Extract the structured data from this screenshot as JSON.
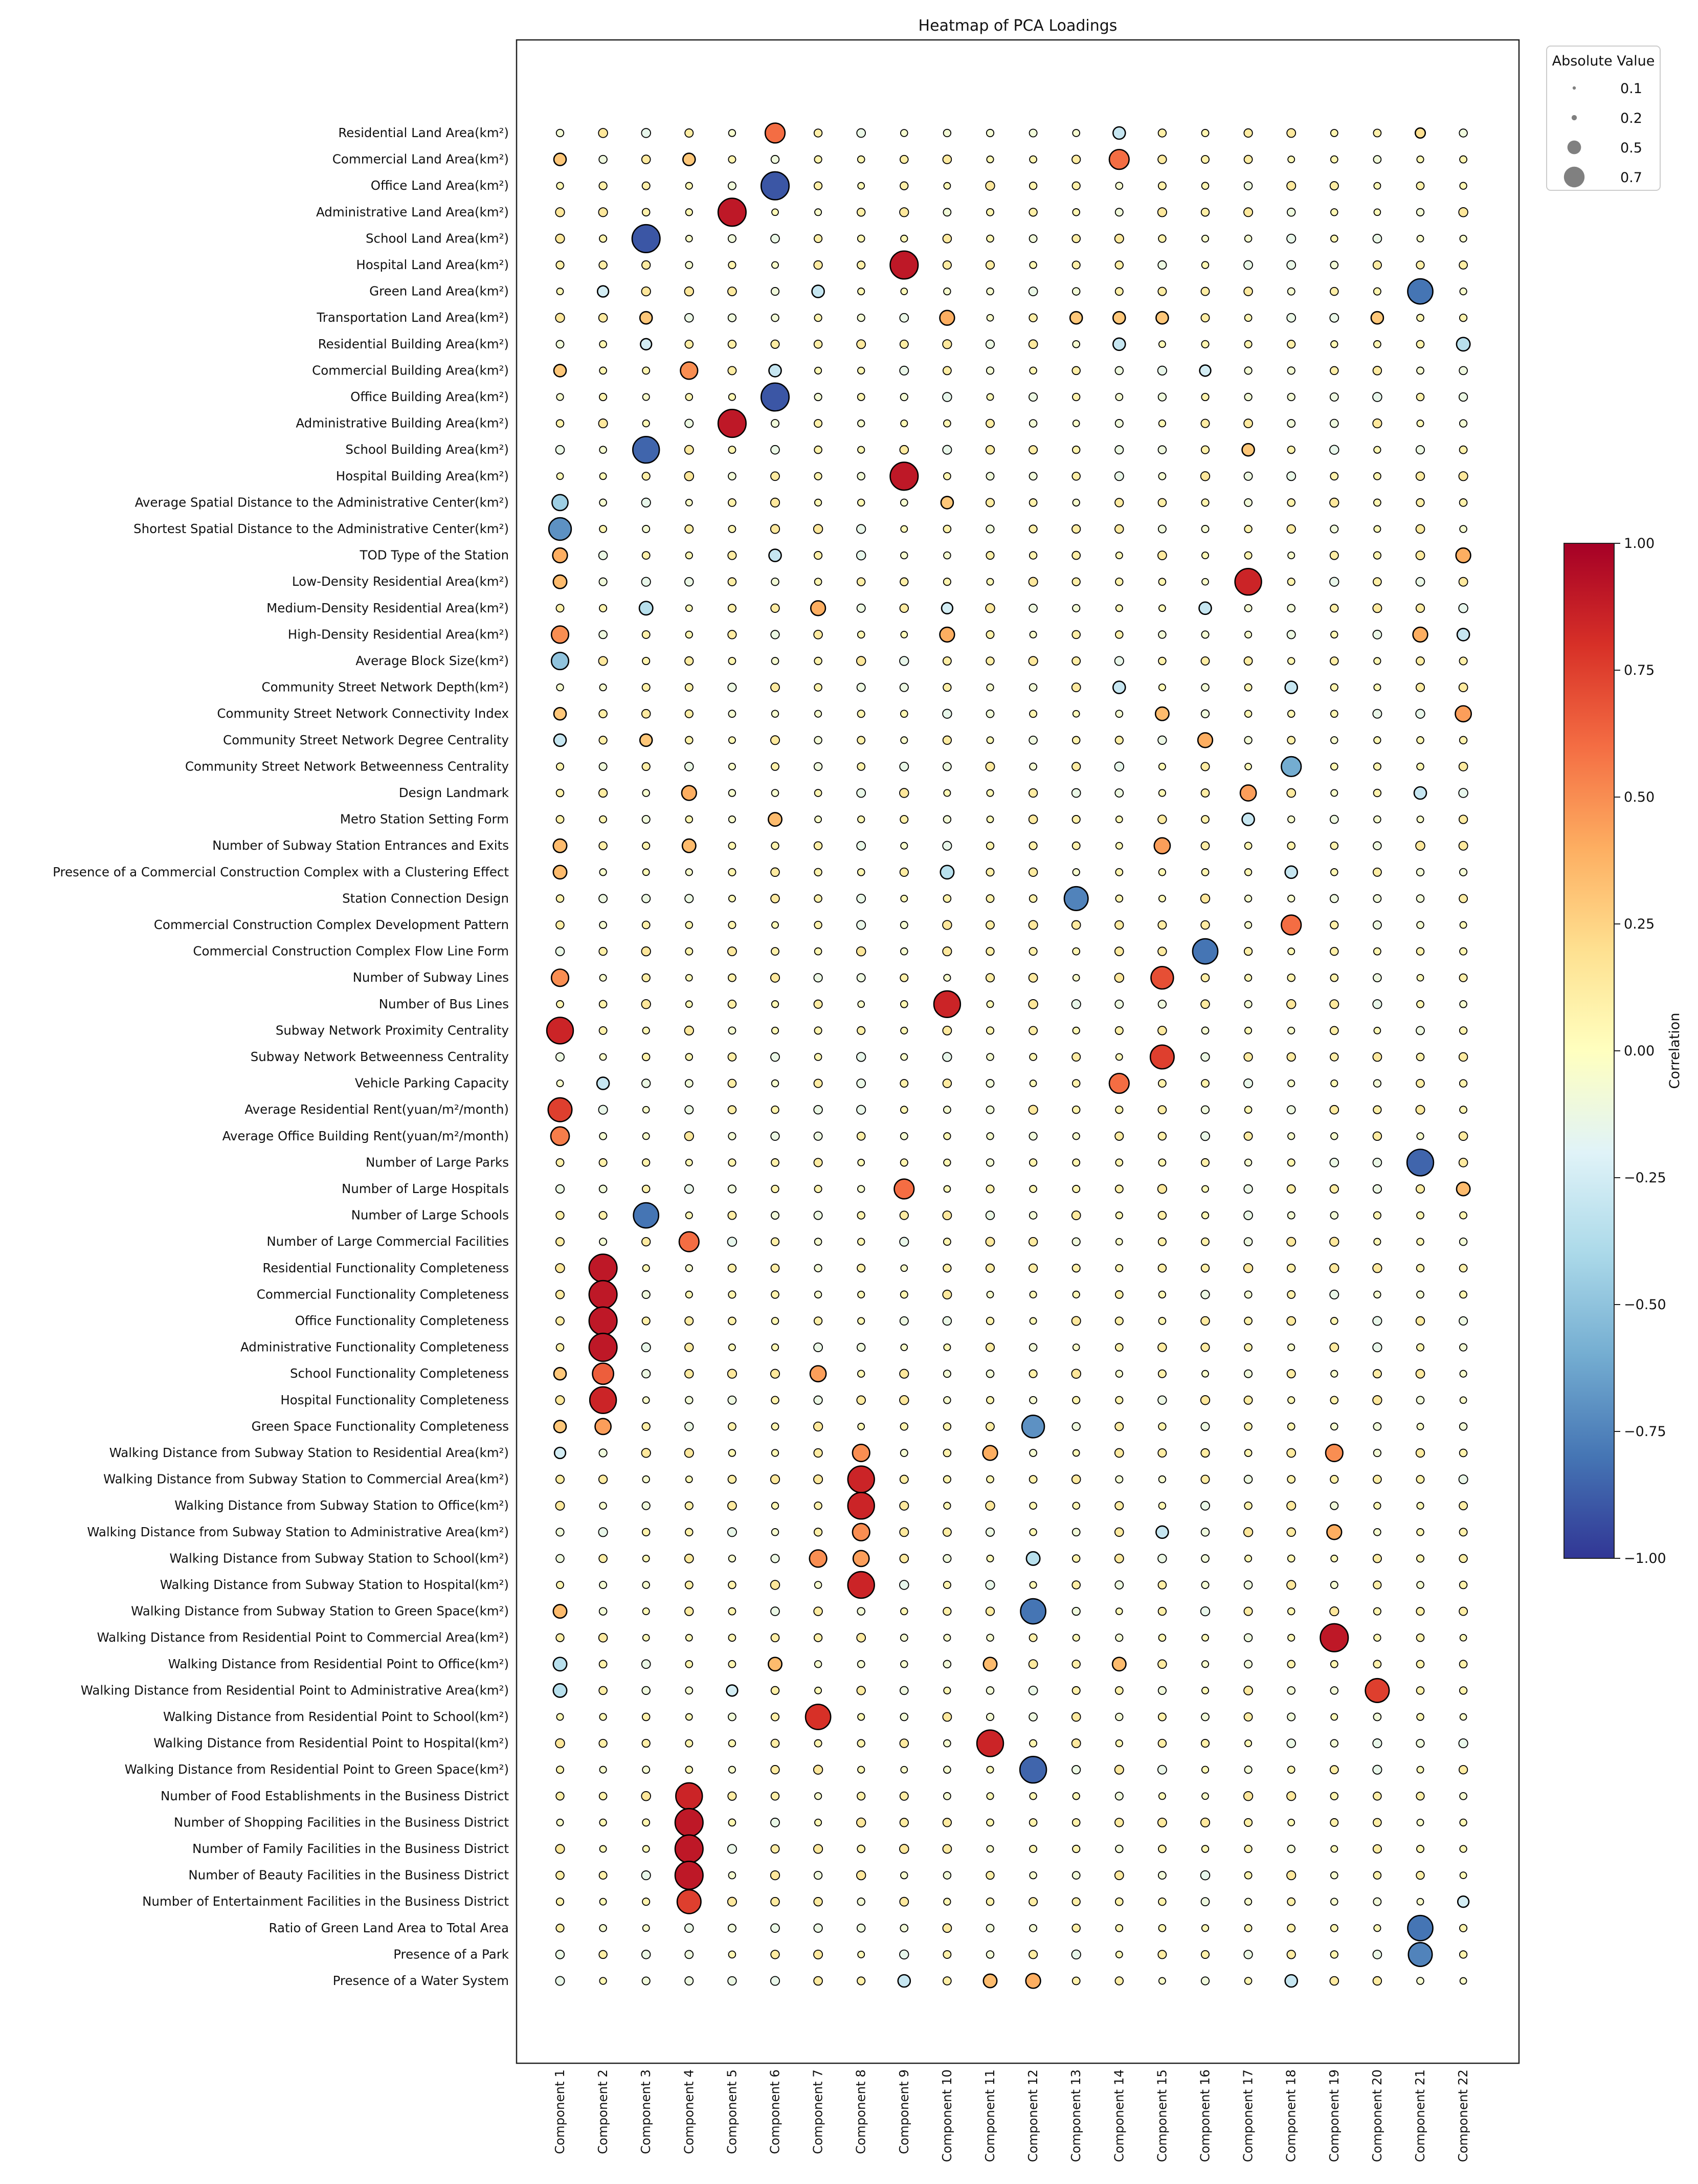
{
  "chart_data": {
    "type": "scatter",
    "title": "Heatmap of PCA Loadings",
    "xlabel": "",
    "ylabel": "",
    "components": [
      "Component 1",
      "Component 2",
      "Component 3",
      "Component 4",
      "Component 5",
      "Component 6",
      "Component 7",
      "Component 8",
      "Component 9",
      "Component 10",
      "Component 11",
      "Component 12",
      "Component 13",
      "Component 14",
      "Component 15",
      "Component 16",
      "Component 17",
      "Component 18",
      "Component 19",
      "Component 20",
      "Component 21",
      "Component 22"
    ],
    "variables": [
      "Residential Land Area(km²)",
      "Commercial Land Area(km²)",
      "Office Land Area(km²)",
      "Administrative Land Area(km²)",
      "School Land Area(km²)",
      "Hospital Land Area(km²)",
      "Green Land Area(km²)",
      "Transportation Land Area(km²)",
      "Residential Building Area(km²)",
      "Commercial Building Area(km²)",
      "Office Building Area(km²)",
      "Administrative Building Area(km²)",
      "School Building Area(km²)",
      "Hospital Building Area(km²)",
      "Average Spatial Distance to the Administrative Center(km²)",
      "Shortest Spatial Distance to the Administrative Center(km²)",
      "TOD Type of the Station",
      "Low-Density Residential Area(km²)",
      "Medium-Density Residential Area(km²)",
      "High-Density Residential Area(km²)",
      "Average Block Size(km²)",
      "Community Street Network Depth(km²)",
      "Community Street Network Connectivity Index",
      "Community Street Network Degree Centrality",
      "Community Street Network Betweenness Centrality",
      "Design Landmark",
      "Metro Station Setting Form",
      "Number of Subway Station Entrances and Exits",
      "Presence of a Commercial Construction Complex with a Clustering Effect",
      "Station Connection Design",
      "Commercial Construction Complex Development Pattern",
      "Commercial Construction Complex Flow Line Form",
      "Number of Subway Lines",
      "Number of Bus Lines",
      "Subway Network Proximity Centrality",
      "Subway Network Betweenness Centrality",
      "Vehicle Parking Capacity",
      "Average Residential Rent(yuan/m²/month)",
      "Average Office Building Rent(yuan/m²/month)",
      "Number of Large Parks",
      "Number of Large Hospitals",
      "Number of Large Schools",
      "Number of Large Commercial Facilities",
      "Residential Functionality Completeness",
      "Commercial Functionality Completeness",
      "Office Functionality Completeness",
      "Administrative Functionality Completeness",
      "School Functionality Completeness",
      "Hospital Functionality Completeness",
      "Green Space Functionality Completeness",
      "Walking Distance from Subway Station to Residential Area(km²)",
      "Walking Distance from Subway Station to Commercial Area(km²)",
      "Walking Distance from Subway Station to Office(km²)",
      "Walking Distance from Subway Station to Administrative Area(km²)",
      "Walking Distance from Subway Station to School(km²)",
      "Walking Distance from Subway Station to Hospital(km²)",
      "Walking Distance from Subway Station to Green Space(km²)",
      "Walking Distance from Residential Point to Commercial Area(km²)",
      "Walking Distance from Residential Point to Office(km²)",
      "Walking Distance from Residential Point to Administrative Area(km²)",
      "Walking Distance from Residential Point to School(km²)",
      "Walking Distance from Residential Point to Hospital(km²)",
      "Walking Distance from Residential Point to Green Space(km²)",
      "Number of Food Establishments in the Business District",
      "Number of Shopping Facilities in the Business District",
      "Number of Family Facilities in the Business District",
      "Number of Beauty Facilities in the Business District",
      "Number of Entertainment Facilities in the Business District",
      "Ratio of Green Land Area to Total Area",
      "Presence of a Park",
      "Presence of a Water System"
    ],
    "background_loading": 0.08,
    "strong_loadings": [
      {
        "row": 0,
        "col": 5,
        "value": 0.6
      },
      {
        "row": 0,
        "col": 13,
        "value": -0.3
      },
      {
        "row": 0,
        "col": 20,
        "value": 0.2
      },
      {
        "row": 1,
        "col": 0,
        "value": 0.3
      },
      {
        "row": 1,
        "col": 3,
        "value": 0.3
      },
      {
        "row": 1,
        "col": 13,
        "value": 0.6
      },
      {
        "row": 2,
        "col": 5,
        "value": -0.9
      },
      {
        "row": 3,
        "col": 4,
        "value": 0.9
      },
      {
        "row": 4,
        "col": 2,
        "value": -0.9
      },
      {
        "row": 5,
        "col": 8,
        "value": 0.9
      },
      {
        "row": 6,
        "col": 1,
        "value": -0.25
      },
      {
        "row": 6,
        "col": 6,
        "value": -0.3
      },
      {
        "row": 6,
        "col": 20,
        "value": -0.8
      },
      {
        "row": 7,
        "col": 2,
        "value": 0.3
      },
      {
        "row": 7,
        "col": 9,
        "value": 0.4
      },
      {
        "row": 7,
        "col": 12,
        "value": 0.3
      },
      {
        "row": 7,
        "col": 13,
        "value": 0.3
      },
      {
        "row": 7,
        "col": 14,
        "value": 0.3
      },
      {
        "row": 7,
        "col": 19,
        "value": 0.3
      },
      {
        "row": 8,
        "col": 2,
        "value": -0.25
      },
      {
        "row": 8,
        "col": 13,
        "value": -0.3
      },
      {
        "row": 8,
        "col": 21,
        "value": -0.35
      },
      {
        "row": 9,
        "col": 0,
        "value": 0.3
      },
      {
        "row": 9,
        "col": 3,
        "value": 0.5
      },
      {
        "row": 9,
        "col": 5,
        "value": -0.3
      },
      {
        "row": 9,
        "col": 15,
        "value": -0.25
      },
      {
        "row": 10,
        "col": 5,
        "value": -0.9
      },
      {
        "row": 11,
        "col": 4,
        "value": 0.9
      },
      {
        "row": 12,
        "col": 2,
        "value": -0.85
      },
      {
        "row": 12,
        "col": 16,
        "value": 0.3
      },
      {
        "row": 13,
        "col": 8,
        "value": 0.9
      },
      {
        "row": 14,
        "col": 0,
        "value": -0.45
      },
      {
        "row": 14,
        "col": 9,
        "value": 0.3
      },
      {
        "row": 15,
        "col": 0,
        "value": -0.7
      },
      {
        "row": 16,
        "col": 0,
        "value": 0.4
      },
      {
        "row": 16,
        "col": 5,
        "value": -0.3
      },
      {
        "row": 16,
        "col": 21,
        "value": 0.4
      },
      {
        "row": 17,
        "col": 0,
        "value": 0.35
      },
      {
        "row": 17,
        "col": 16,
        "value": 0.85
      },
      {
        "row": 18,
        "col": 2,
        "value": -0.35
      },
      {
        "row": 18,
        "col": 6,
        "value": 0.4
      },
      {
        "row": 18,
        "col": 9,
        "value": -0.25
      },
      {
        "row": 18,
        "col": 15,
        "value": -0.3
      },
      {
        "row": 19,
        "col": 0,
        "value": 0.5
      },
      {
        "row": 19,
        "col": 9,
        "value": 0.4
      },
      {
        "row": 19,
        "col": 20,
        "value": 0.4
      },
      {
        "row": 19,
        "col": 21,
        "value": -0.3
      },
      {
        "row": 20,
        "col": 0,
        "value": -0.5
      },
      {
        "row": 21,
        "col": 13,
        "value": -0.3
      },
      {
        "row": 21,
        "col": 17,
        "value": -0.3
      },
      {
        "row": 22,
        "col": 0,
        "value": 0.3
      },
      {
        "row": 22,
        "col": 14,
        "value": 0.35
      },
      {
        "row": 22,
        "col": 21,
        "value": 0.45
      },
      {
        "row": 23,
        "col": 0,
        "value": -0.3
      },
      {
        "row": 23,
        "col": 2,
        "value": 0.3
      },
      {
        "row": 23,
        "col": 15,
        "value": 0.4
      },
      {
        "row": 24,
        "col": 17,
        "value": -0.6
      },
      {
        "row": 25,
        "col": 3,
        "value": 0.4
      },
      {
        "row": 25,
        "col": 16,
        "value": 0.45
      },
      {
        "row": 25,
        "col": 20,
        "value": -0.3
      },
      {
        "row": 26,
        "col": 5,
        "value": 0.35
      },
      {
        "row": 26,
        "col": 16,
        "value": -0.3
      },
      {
        "row": 27,
        "col": 0,
        "value": 0.35
      },
      {
        "row": 27,
        "col": 3,
        "value": 0.35
      },
      {
        "row": 27,
        "col": 14,
        "value": 0.45
      },
      {
        "row": 28,
        "col": 0,
        "value": 0.35
      },
      {
        "row": 28,
        "col": 9,
        "value": -0.35
      },
      {
        "row": 28,
        "col": 17,
        "value": -0.3
      },
      {
        "row": 29,
        "col": 12,
        "value": -0.75
      },
      {
        "row": 30,
        "col": 17,
        "value": 0.6
      },
      {
        "row": 31,
        "col": 15,
        "value": -0.8
      },
      {
        "row": 32,
        "col": 0,
        "value": 0.5
      },
      {
        "row": 32,
        "col": 14,
        "value": 0.7
      },
      {
        "row": 33,
        "col": 9,
        "value": 0.85
      },
      {
        "row": 34,
        "col": 0,
        "value": 0.85
      },
      {
        "row": 35,
        "col": 14,
        "value": 0.75
      },
      {
        "row": 36,
        "col": 1,
        "value": -0.3
      },
      {
        "row": 36,
        "col": 13,
        "value": 0.6
      },
      {
        "row": 37,
        "col": 0,
        "value": 0.75
      },
      {
        "row": 38,
        "col": 0,
        "value": 0.55
      },
      {
        "row": 39,
        "col": 20,
        "value": -0.85
      },
      {
        "row": 40,
        "col": 8,
        "value": 0.6
      },
      {
        "row": 40,
        "col": 21,
        "value": 0.35
      },
      {
        "row": 41,
        "col": 2,
        "value": -0.8
      },
      {
        "row": 42,
        "col": 3,
        "value": 0.6
      },
      {
        "row": 43,
        "col": 1,
        "value": 0.9
      },
      {
        "row": 44,
        "col": 1,
        "value": 0.9
      },
      {
        "row": 45,
        "col": 1,
        "value": 0.9
      },
      {
        "row": 46,
        "col": 1,
        "value": 0.9
      },
      {
        "row": 47,
        "col": 0,
        "value": 0.3
      },
      {
        "row": 47,
        "col": 1,
        "value": 0.65
      },
      {
        "row": 47,
        "col": 6,
        "value": 0.45
      },
      {
        "row": 48,
        "col": 1,
        "value": 0.85
      },
      {
        "row": 49,
        "col": 0,
        "value": 0.3
      },
      {
        "row": 49,
        "col": 1,
        "value": 0.45
      },
      {
        "row": 49,
        "col": 11,
        "value": -0.7
      },
      {
        "row": 50,
        "col": 0,
        "value": -0.25
      },
      {
        "row": 50,
        "col": 7,
        "value": 0.5
      },
      {
        "row": 50,
        "col": 10,
        "value": 0.4
      },
      {
        "row": 50,
        "col": 18,
        "value": 0.5
      },
      {
        "row": 51,
        "col": 7,
        "value": 0.85
      },
      {
        "row": 52,
        "col": 7,
        "value": 0.85
      },
      {
        "row": 53,
        "col": 7,
        "value": 0.5
      },
      {
        "row": 53,
        "col": 14,
        "value": -0.3
      },
      {
        "row": 53,
        "col": 18,
        "value": 0.4
      },
      {
        "row": 54,
        "col": 6,
        "value": 0.5
      },
      {
        "row": 54,
        "col": 7,
        "value": 0.45
      },
      {
        "row": 54,
        "col": 11,
        "value": -0.35
      },
      {
        "row": 55,
        "col": 7,
        "value": 0.85
      },
      {
        "row": 56,
        "col": 0,
        "value": 0.35
      },
      {
        "row": 56,
        "col": 11,
        "value": -0.8
      },
      {
        "row": 57,
        "col": 18,
        "value": 0.9
      },
      {
        "row": 58,
        "col": 0,
        "value": -0.35
      },
      {
        "row": 58,
        "col": 5,
        "value": 0.35
      },
      {
        "row": 58,
        "col": 10,
        "value": 0.35
      },
      {
        "row": 58,
        "col": 13,
        "value": 0.35
      },
      {
        "row": 59,
        "col": 0,
        "value": -0.35
      },
      {
        "row": 59,
        "col": 4,
        "value": -0.25
      },
      {
        "row": 59,
        "col": 19,
        "value": 0.75
      },
      {
        "row": 60,
        "col": 6,
        "value": 0.8
      },
      {
        "row": 61,
        "col": 10,
        "value": 0.85
      },
      {
        "row": 62,
        "col": 11,
        "value": -0.85
      },
      {
        "row": 63,
        "col": 3,
        "value": 0.85
      },
      {
        "row": 64,
        "col": 3,
        "value": 0.9
      },
      {
        "row": 65,
        "col": 3,
        "value": 0.9
      },
      {
        "row": 66,
        "col": 3,
        "value": 0.9
      },
      {
        "row": 67,
        "col": 3,
        "value": 0.75
      },
      {
        "row": 67,
        "col": 21,
        "value": -0.25
      },
      {
        "row": 68,
        "col": 20,
        "value": -0.8
      },
      {
        "row": 69,
        "col": 20,
        "value": -0.75
      },
      {
        "row": 70,
        "col": 8,
        "value": -0.3
      },
      {
        "row": 70,
        "col": 10,
        "value": 0.35
      },
      {
        "row": 70,
        "col": 11,
        "value": 0.4
      },
      {
        "row": 70,
        "col": 17,
        "value": -0.3
      }
    ],
    "size_legend": {
      "title": "Absolute Value",
      "entries": [
        {
          "label": "0.1",
          "value": 0.1
        },
        {
          "label": "0.2",
          "value": 0.2
        },
        {
          "label": "0.5",
          "value": 0.5
        },
        {
          "label": "0.7",
          "value": 0.7
        }
      ],
      "placement": "top-right"
    },
    "colorbar": {
      "label": "Correlation",
      "range": [
        -1.0,
        1.0
      ],
      "ticks": [
        "1.00",
        "0.75",
        "0.50",
        "0.25",
        "0.00",
        "−0.25",
        "−0.50",
        "−0.75",
        "−1.00"
      ],
      "colormap": "RdYlBu_r"
    },
    "grid": false
  }
}
